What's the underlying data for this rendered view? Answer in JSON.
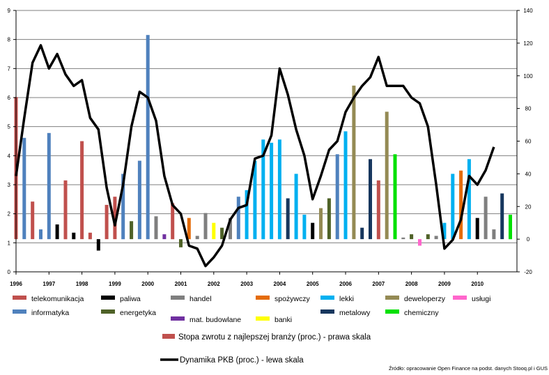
{
  "chart_data": {
    "type": "bar",
    "x_ticks": [
      "1996",
      "1997",
      "1998",
      "1999",
      "2000",
      "2001",
      "2002",
      "2003",
      "2004",
      "2005",
      "2006",
      "2007",
      "2008",
      "2009",
      "2010"
    ],
    "left_axis": {
      "ticks": [
        "0",
        "1",
        "2",
        "3",
        "4",
        "5",
        "6",
        "7",
        "8",
        "9"
      ],
      "range": [
        0,
        9
      ]
    },
    "right_axis": {
      "ticks": [
        "-20",
        "0",
        "20",
        "40",
        "60",
        "80",
        "100",
        "120",
        "140"
      ],
      "range": [
        -20,
        140
      ]
    },
    "grid": "horizontal",
    "legend": [
      {
        "key": "telekomunikacja",
        "label": "telekomunikacja",
        "color": "#c0504d"
      },
      {
        "key": "paliwa",
        "label": "paliwa",
        "color": "#000000"
      },
      {
        "key": "handel",
        "label": "handel",
        "color": "#7f7f7f"
      },
      {
        "key": "spozywczy",
        "label": "spożywczy",
        "color": "#e46c0a"
      },
      {
        "key": "lekki",
        "label": "lekki",
        "color": "#00b0f0"
      },
      {
        "key": "deweloperzy",
        "label": "deweloperzy",
        "color": "#948a54"
      },
      {
        "key": "uslugi",
        "label": "usługi",
        "color": "#ff66cc"
      },
      {
        "key": "informatyka",
        "label": "informatyka",
        "color": "#4f81bd"
      },
      {
        "key": "energetyka",
        "label": "energetyka",
        "color": "#4f6228"
      },
      {
        "key": "mat_budowlane",
        "label": "mat. budowlane",
        "color": "#7030a0"
      },
      {
        "key": "banki",
        "label": "banki",
        "color": "#ffff00"
      },
      {
        "key": "metalowy",
        "label": "metalowy",
        "color": "#17375e"
      },
      {
        "key": "chemiczny",
        "label": "chemiczny",
        "color": "#00e000"
      }
    ],
    "bar_series_label": "Stopa zwrotu z najlepszej branży (proc.) - prawa skala",
    "line_series_label": "Dynamika PKB (proc.) - lewa skala",
    "source_note": "Źródło: opracowanie Open Finance na podst. danych Stooq.pl i GUS",
    "bars": [
      {
        "x": 1996.0,
        "value": 87,
        "sector": "telekomunikacja"
      },
      {
        "x": 1996.25,
        "value": 62,
        "sector": "informatyka"
      },
      {
        "x": 1996.5,
        "value": 23,
        "sector": "telekomunikacja"
      },
      {
        "x": 1996.75,
        "value": 6,
        "sector": "informatyka"
      },
      {
        "x": 1997.0,
        "value": 65,
        "sector": "informatyka"
      },
      {
        "x": 1997.25,
        "value": 9,
        "sector": "paliwa"
      },
      {
        "x": 1997.5,
        "value": 36,
        "sector": "telekomunikacja"
      },
      {
        "x": 1997.75,
        "value": 4,
        "sector": "paliwa"
      },
      {
        "x": 1998.0,
        "value": 60,
        "sector": "telekomunikacja"
      },
      {
        "x": 1998.25,
        "value": 4,
        "sector": "telekomunikacja"
      },
      {
        "x": 1998.5,
        "value": -7,
        "sector": "paliwa"
      },
      {
        "x": 1998.75,
        "value": 21,
        "sector": "telekomunikacja"
      },
      {
        "x": 1999.0,
        "value": 26,
        "sector": "telekomunikacja"
      },
      {
        "x": 1999.25,
        "value": 40,
        "sector": "informatyka"
      },
      {
        "x": 1999.5,
        "value": 11,
        "sector": "energetyka"
      },
      {
        "x": 1999.75,
        "value": 48,
        "sector": "informatyka"
      },
      {
        "x": 2000.0,
        "value": 125,
        "sector": "informatyka"
      },
      {
        "x": 2000.25,
        "value": 14,
        "sector": "handel"
      },
      {
        "x": 2000.5,
        "value": 3,
        "sector": "mat_budowlane"
      },
      {
        "x": 2000.75,
        "value": 22,
        "sector": "telekomunikacja"
      },
      {
        "x": 2001.0,
        "value": -5,
        "sector": "energetyka"
      },
      {
        "x": 2001.25,
        "value": 13,
        "sector": "spozywczy"
      },
      {
        "x": 2001.5,
        "value": 2,
        "sector": "handel"
      },
      {
        "x": 2001.75,
        "value": 16,
        "sector": "handel"
      },
      {
        "x": 2002.0,
        "value": 10,
        "sector": "banki"
      },
      {
        "x": 2002.25,
        "value": 7,
        "sector": "energetyka"
      },
      {
        "x": 2002.5,
        "value": 13,
        "sector": "handel"
      },
      {
        "x": 2002.75,
        "value": 26,
        "sector": "informatyka"
      },
      {
        "x": 2003.0,
        "value": 30,
        "sector": "lekki"
      },
      {
        "x": 2003.25,
        "value": 48,
        "sector": "lekki"
      },
      {
        "x": 2003.5,
        "value": 61,
        "sector": "lekki"
      },
      {
        "x": 2003.75,
        "value": 59,
        "sector": "lekki"
      },
      {
        "x": 2004.0,
        "value": 61,
        "sector": "lekki"
      },
      {
        "x": 2004.25,
        "value": 25,
        "sector": "metalowy"
      },
      {
        "x": 2004.5,
        "value": 40,
        "sector": "lekki"
      },
      {
        "x": 2004.75,
        "value": 15,
        "sector": "lekki"
      },
      {
        "x": 2005.0,
        "value": 10,
        "sector": "paliwa"
      },
      {
        "x": 2005.25,
        "value": 19,
        "sector": "deweloperzy"
      },
      {
        "x": 2005.5,
        "value": 25,
        "sector": "energetyka"
      },
      {
        "x": 2005.75,
        "value": 52,
        "sector": "informatyka"
      },
      {
        "x": 2006.0,
        "value": 66,
        "sector": "lekki"
      },
      {
        "x": 2006.25,
        "value": 94,
        "sector": "deweloperzy"
      },
      {
        "x": 2006.5,
        "value": 7,
        "sector": "metalowy"
      },
      {
        "x": 2006.75,
        "value": 49,
        "sector": "metalowy"
      },
      {
        "x": 2007.0,
        "value": 36,
        "sector": "telekomunikacja"
      },
      {
        "x": 2007.25,
        "value": 78,
        "sector": "deweloperzy"
      },
      {
        "x": 2007.5,
        "value": 52,
        "sector": "chemiczny"
      },
      {
        "x": 2007.75,
        "value": 1,
        "sector": "handel"
      },
      {
        "x": 2008.0,
        "value": 3,
        "sector": "energetyka"
      },
      {
        "x": 2008.25,
        "value": -4,
        "sector": "uslugi"
      },
      {
        "x": 2008.5,
        "value": 3,
        "sector": "energetyka"
      },
      {
        "x": 2008.75,
        "value": 2,
        "sector": "handel"
      },
      {
        "x": 2009.0,
        "value": 10,
        "sector": "lekki"
      },
      {
        "x": 2009.25,
        "value": 40,
        "sector": "lekki"
      },
      {
        "x": 2009.5,
        "value": 42,
        "sector": "spozywczy"
      },
      {
        "x": 2009.75,
        "value": 49,
        "sector": "lekki"
      },
      {
        "x": 2010.0,
        "value": 13,
        "sector": "paliwa"
      },
      {
        "x": 2010.25,
        "value": 26,
        "sector": "handel"
      },
      {
        "x": 2010.5,
        "value": 6,
        "sector": "handel"
      },
      {
        "x": 2010.75,
        "value": 28,
        "sector": "metalowy"
      },
      {
        "x": 2011.0,
        "value": 15,
        "sector": "chemiczny"
      }
    ],
    "line": [
      {
        "x": 1996.0,
        "y": 3.3
      },
      {
        "x": 1996.25,
        "y": 5.3
      },
      {
        "x": 1996.5,
        "y": 7.2
      },
      {
        "x": 1996.75,
        "y": 7.8
      },
      {
        "x": 1997.0,
        "y": 7.0
      },
      {
        "x": 1997.25,
        "y": 7.5
      },
      {
        "x": 1997.5,
        "y": 6.8
      },
      {
        "x": 1997.75,
        "y": 6.4
      },
      {
        "x": 1998.0,
        "y": 6.6
      },
      {
        "x": 1998.25,
        "y": 5.3
      },
      {
        "x": 1998.5,
        "y": 4.9
      },
      {
        "x": 1998.75,
        "y": 2.9
      },
      {
        "x": 1999.0,
        "y": 1.6
      },
      {
        "x": 1999.25,
        "y": 3.0
      },
      {
        "x": 1999.5,
        "y": 5.0
      },
      {
        "x": 1999.75,
        "y": 6.2
      },
      {
        "x": 2000.0,
        "y": 6.0
      },
      {
        "x": 2000.25,
        "y": 5.2
      },
      {
        "x": 2000.5,
        "y": 3.3
      },
      {
        "x": 2000.75,
        "y": 2.3
      },
      {
        "x": 2001.0,
        "y": 2.0
      },
      {
        "x": 2001.25,
        "y": 0.9
      },
      {
        "x": 2001.5,
        "y": 0.8
      },
      {
        "x": 2001.75,
        "y": 0.2
      },
      {
        "x": 2002.0,
        "y": 0.5
      },
      {
        "x": 2002.25,
        "y": 0.9
      },
      {
        "x": 2002.5,
        "y": 1.8
      },
      {
        "x": 2002.75,
        "y": 2.2
      },
      {
        "x": 2003.0,
        "y": 2.3
      },
      {
        "x": 2003.25,
        "y": 3.9
      },
      {
        "x": 2003.5,
        "y": 4.0
      },
      {
        "x": 2003.75,
        "y": 4.7
      },
      {
        "x": 2004.0,
        "y": 7.0
      },
      {
        "x": 2004.25,
        "y": 6.1
      },
      {
        "x": 2004.5,
        "y": 4.9
      },
      {
        "x": 2004.75,
        "y": 4.0
      },
      {
        "x": 2005.0,
        "y": 2.5
      },
      {
        "x": 2005.25,
        "y": 3.3
      },
      {
        "x": 2005.5,
        "y": 4.2
      },
      {
        "x": 2005.75,
        "y": 4.5
      },
      {
        "x": 2006.0,
        "y": 5.5
      },
      {
        "x": 2006.25,
        "y": 6.0
      },
      {
        "x": 2006.5,
        "y": 6.4
      },
      {
        "x": 2006.75,
        "y": 6.7
      },
      {
        "x": 2007.0,
        "y": 7.4
      },
      {
        "x": 2007.25,
        "y": 6.4
      },
      {
        "x": 2007.5,
        "y": 6.4
      },
      {
        "x": 2007.75,
        "y": 6.4
      },
      {
        "x": 2008.0,
        "y": 6.0
      },
      {
        "x": 2008.25,
        "y": 5.8
      },
      {
        "x": 2008.5,
        "y": 5.0
      },
      {
        "x": 2008.75,
        "y": 3.0
      },
      {
        "x": 2009.0,
        "y": 0.8
      },
      {
        "x": 2009.25,
        "y": 1.1
      },
      {
        "x": 2009.5,
        "y": 1.8
      },
      {
        "x": 2009.75,
        "y": 3.3
      },
      {
        "x": 2010.0,
        "y": 3.0
      },
      {
        "x": 2010.25,
        "y": 3.5
      },
      {
        "x": 2010.5,
        "y": 4.3
      }
    ]
  }
}
